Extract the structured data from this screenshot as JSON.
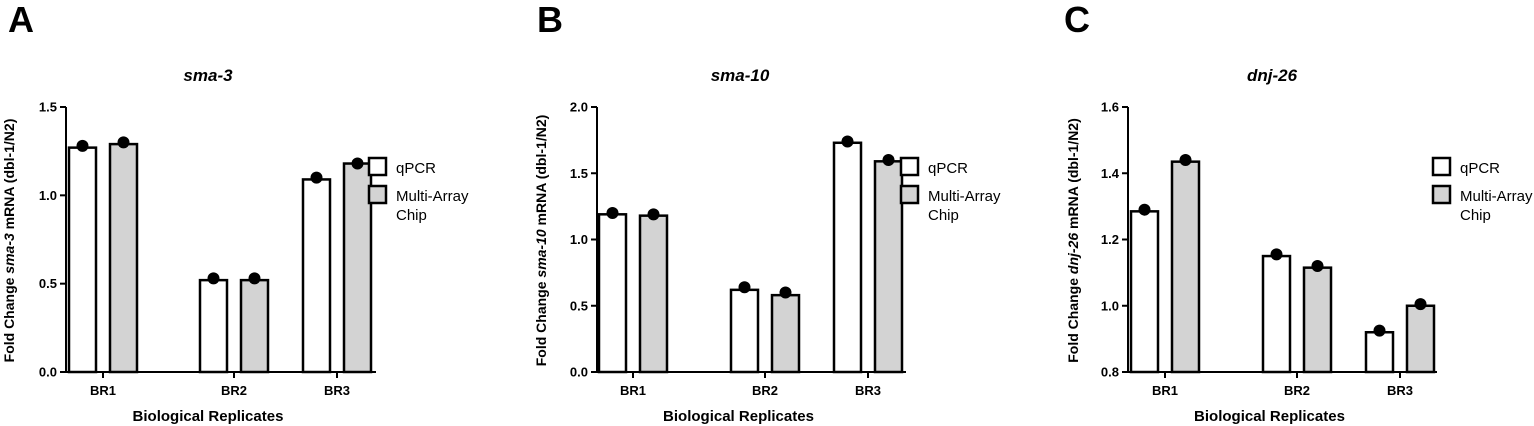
{
  "chart_data": [
    {
      "panel": "A",
      "type": "bar",
      "title": "sma-3",
      "xlabel": "Biological Replicates",
      "ylabel": {
        "prefix": "Fold Change ",
        "gene": "sma-3",
        "suffix": " mRNA (dbl-1/N2)"
      },
      "categories": [
        "BR1",
        "BR2",
        "BR3"
      ],
      "ylim": [
        0.0,
        1.5
      ],
      "yticks": [
        "0.0",
        "0.5",
        "1.0",
        "1.5"
      ],
      "series": [
        {
          "name": "qPCR",
          "values": [
            1.27,
            0.52,
            1.09
          ],
          "points": [
            1.28,
            0.53,
            1.1
          ],
          "fill": "#ffffff"
        },
        {
          "name": "Multi-Array Chip",
          "values": [
            1.29,
            0.52,
            1.18
          ],
          "points": [
            1.3,
            0.53,
            1.18
          ],
          "fill": "#d3d3d3"
        }
      ]
    },
    {
      "panel": "B",
      "type": "bar",
      "title": "sma-10",
      "xlabel": "Biological Replicates",
      "ylabel": {
        "prefix": "Fold Change ",
        "gene": "sma-10",
        "suffix": " mRNA (dbl-1/N2)"
      },
      "categories": [
        "BR1",
        "BR2",
        "BR3"
      ],
      "ylim": [
        0.0,
        2.0
      ],
      "yticks": [
        "0.0",
        "0.5",
        "1.0",
        "1.5",
        "2.0"
      ],
      "series": [
        {
          "name": "qPCR",
          "values": [
            1.19,
            0.62,
            1.73
          ],
          "points": [
            1.2,
            0.64,
            1.74
          ],
          "fill": "#ffffff"
        },
        {
          "name": "Multi-Array Chip",
          "values": [
            1.18,
            0.58,
            1.59
          ],
          "points": [
            1.19,
            0.6,
            1.6
          ],
          "fill": "#d3d3d3"
        }
      ]
    },
    {
      "panel": "C",
      "type": "bar",
      "title": "dnj-26",
      "xlabel": "Biological Replicates",
      "ylabel": {
        "prefix": "Fold Change ",
        "gene": "dnj-26",
        "suffix": " mRNA (dbl-1/N2)"
      },
      "categories": [
        "BR1",
        "BR2",
        "BR3"
      ],
      "ylim": [
        0.8,
        1.6
      ],
      "yticks": [
        "0.8",
        "1.0",
        "1.2",
        "1.4",
        "1.6"
      ],
      "series": [
        {
          "name": "qPCR",
          "values": [
            1.285,
            1.15,
            0.92
          ],
          "points": [
            1.29,
            1.155,
            0.925
          ],
          "fill": "#ffffff"
        },
        {
          "name": "Multi-Array Chip",
          "values": [
            1.435,
            1.115,
            1.0
          ],
          "points": [
            1.44,
            1.12,
            1.005
          ],
          "fill": "#d3d3d3"
        }
      ]
    }
  ],
  "legend": {
    "items": [
      "qPCR",
      "Multi-Array Chip"
    ],
    "placement": "right"
  },
  "colors": {
    "qpcr": "#ffffff",
    "chip": "#d3d3d3",
    "stroke": "#000000",
    "point": "#000000"
  }
}
